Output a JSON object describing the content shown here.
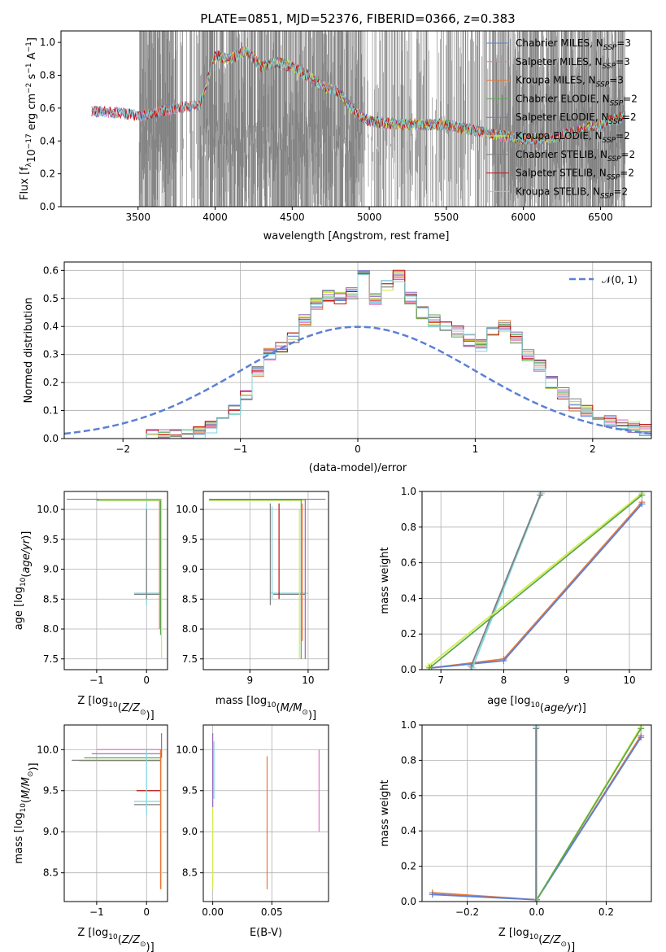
{
  "chart_data": [
    {
      "type": "line",
      "title": "PLATE=0851, MJD=52376, FIBERID=0366, z=0.383",
      "xlabel": "wavelength [Angstrom, rest frame]",
      "ylabel": "Flux [f_λ 10^-17 erg cm^-2 s^-1 A^-1]",
      "xlim": [
        3000,
        6830
      ],
      "ylim": [
        0,
        1.07
      ],
      "xticks": [
        "3500",
        "4000",
        "4500",
        "5000",
        "5500",
        "6000",
        "6500"
      ],
      "yticks": [
        "0.0",
        "0.2",
        "0.4",
        "0.6",
        "0.8",
        "1.0"
      ],
      "legend_position": "upper right",
      "data_range": [
        3200,
        6650
      ],
      "series": [
        {
          "name": "Chabrier MILES, N_SSP=3",
          "color": "#5b7fd6",
          "start": 3200
        },
        {
          "name": "Salpeter MILES, N_SSP=3",
          "color": "#e377c2",
          "start": 3200
        },
        {
          "name": "Kroupa MILES, N_SSP=3",
          "color": "#e8793a",
          "start": 3530
        },
        {
          "name": "Chabrier ELODIE, N_SSP=2",
          "color": "#5ba852",
          "start": 3900
        },
        {
          "name": "Salpeter ELODIE, N_SSP=2",
          "color": "#9467bd",
          "start": 3900
        },
        {
          "name": "Kroupa ELODIE, N_SSP=2",
          "color": "#d4ec4c",
          "start": 3900
        },
        {
          "name": "Chabrier STELIB, N_SSP=2",
          "color": "#7f7f7f",
          "start": 3200
        },
        {
          "name": "Salpeter STELIB, N_SSP=2",
          "color": "#c01010",
          "start": 3200
        },
        {
          "name": "Kroupa STELIB, N_SSP=2",
          "color": "#7fd6df",
          "start": 3200
        }
      ],
      "data_trend": {
        "x": [
          3200,
          3400,
          3520,
          3600,
          3750,
          3900,
          4000,
          4100,
          4200,
          4300,
          4400,
          4500,
          4600,
          4700,
          4800,
          4900,
          5000,
          5200,
          5500,
          5800,
          6000,
          6200,
          6400,
          6650
        ],
        "y": [
          0.58,
          0.57,
          0.55,
          0.57,
          0.6,
          0.62,
          0.92,
          0.9,
          0.95,
          0.85,
          0.88,
          0.85,
          0.8,
          0.73,
          0.7,
          0.58,
          0.52,
          0.5,
          0.5,
          0.44,
          0.41,
          0.42,
          0.48,
          0.55
        ]
      }
    },
    {
      "type": "histogram",
      "xlabel": "(data-model)/error",
      "ylabel": "Normed distribution",
      "xlim": [
        -2.5,
        2.5
      ],
      "ylim": [
        0,
        0.63
      ],
      "xticks": [
        "−2",
        "−1",
        "0",
        "1",
        "2"
      ],
      "yticks": [
        "0.0",
        "0.1",
        "0.2",
        "0.3",
        "0.4",
        "0.5",
        "0.6"
      ],
      "legend": [
        "𝒩(0, 1)"
      ],
      "reference_curve": {
        "name": "𝒩(0, 1)",
        "style": "dashed",
        "color": "#5b80d6",
        "mean": 0,
        "sigma": 1
      },
      "bin_width": 0.1,
      "bin_start": -1.8,
      "base_values": [
        0.01,
        0.01,
        0.01,
        0.02,
        0.02,
        0.04,
        0.06,
        0.1,
        0.16,
        0.24,
        0.3,
        0.33,
        0.36,
        0.42,
        0.48,
        0.51,
        0.5,
        0.52,
        0.58,
        0.5,
        0.55,
        0.58,
        0.5,
        0.45,
        0.42,
        0.4,
        0.38,
        0.35,
        0.33,
        0.38,
        0.4,
        0.36,
        0.3,
        0.26,
        0.2,
        0.16,
        0.12,
        0.1,
        0.07,
        0.06,
        0.05,
        0.04,
        0.03
      ],
      "series_colors": [
        "#5b7fd6",
        "#e377c2",
        "#e8793a",
        "#5ba852",
        "#9467bd",
        "#d4ec4c",
        "#7f7f7f",
        "#c01010",
        "#7fd6df"
      ]
    },
    {
      "type": "errorbar",
      "xlabel": "Z [log10(Z/Z⊙)]",
      "ylabel": "age  [log10(age/yr)]",
      "xlim": [
        -1.65,
        0.42
      ],
      "ylim": [
        7.32,
        10.3
      ],
      "xticks": [
        "−1",
        "0"
      ],
      "yticks": [
        "7.5",
        "8.0",
        "8.5",
        "9.0",
        "9.5",
        "10.0"
      ]
    },
    {
      "type": "errorbar",
      "xlabel": "mass [log10(M/M⊙)]",
      "ylabel": "",
      "xlim": [
        8.2,
        10.35
      ],
      "ylim": [
        7.32,
        10.3
      ],
      "xticks": [
        "9",
        "10"
      ],
      "yticks": [
        "7.5",
        "8.0",
        "8.5",
        "9.0",
        "9.5",
        "10.0"
      ]
    },
    {
      "type": "line",
      "xlabel": "age  [log10(age/yr)]",
      "ylabel": "mass weight",
      "xlim": [
        6.7,
        10.35
      ],
      "ylim": [
        0,
        1
      ],
      "xticks": [
        "7",
        "8",
        "9",
        "10"
      ],
      "yticks": [
        "0.0",
        "0.2",
        "0.4",
        "0.6",
        "0.8",
        "1.0"
      ],
      "series": [
        {
          "color": "#e8793a",
          "x": [
            6.85,
            8.0,
            10.2
          ],
          "y": [
            0.01,
            0.06,
            0.94
          ]
        },
        {
          "color": "#5b7fd6",
          "x": [
            6.85,
            8.0,
            10.2
          ],
          "y": [
            0.01,
            0.05,
            0.93
          ]
        },
        {
          "color": "#7fd6df",
          "x": [
            7.5,
            8.6
          ],
          "y": [
            0.01,
            0.99
          ]
        },
        {
          "color": "#7f7f7f",
          "x": [
            7.48,
            8.58
          ],
          "y": [
            0.02,
            0.98
          ]
        },
        {
          "color": "#d4ec4c",
          "x": [
            6.8,
            10.2
          ],
          "y": [
            0.02,
            0.99
          ]
        },
        {
          "color": "#5ba852",
          "x": [
            6.82,
            10.2
          ],
          "y": [
            0.01,
            0.98
          ]
        }
      ]
    },
    {
      "type": "errorbar",
      "xlabel": "Z [log10(Z/Z⊙)]",
      "ylabel": "mass [log10(M/M⊙)]",
      "xlim": [
        -1.65,
        0.42
      ],
      "ylim": [
        8.15,
        10.3
      ],
      "xticks": [
        "−1",
        "0"
      ],
      "yticks": [
        "8.5",
        "9.0",
        "9.5",
        "10.0"
      ]
    },
    {
      "type": "errorbar",
      "xlabel": "E(B-V)",
      "ylabel": "",
      "xlim": [
        -0.008,
        0.098
      ],
      "ylim": [
        8.15,
        10.3
      ],
      "xticks": [
        "0.00",
        "0.05"
      ],
      "yticks": [
        "8.5",
        "9.0",
        "9.5",
        "10.0"
      ]
    },
    {
      "type": "line",
      "xlabel": "Z [log10(Z/Z⊙)]",
      "ylabel": "mass weight",
      "xlim": [
        -0.33,
        0.33
      ],
      "ylim": [
        0,
        1
      ],
      "xticks": [
        "−0.2",
        "0.0",
        "0.2"
      ],
      "yticks": [
        "0.0",
        "0.2",
        "0.4",
        "0.6",
        "0.8",
        "1.0"
      ],
      "series": [
        {
          "color": "#e8793a",
          "x": [
            -0.3,
            0.0,
            0.3
          ],
          "y": [
            0.05,
            0.01,
            0.94
          ]
        },
        {
          "color": "#5b7fd6",
          "x": [
            -0.3,
            0.0,
            0.3
          ],
          "y": [
            0.04,
            0.01,
            0.93
          ]
        },
        {
          "color": "#d4ec4c",
          "x": [
            0.0,
            0.3
          ],
          "y": [
            0.01,
            0.99
          ]
        },
        {
          "color": "#5ba852",
          "x": [
            0.0,
            0.3
          ],
          "y": [
            0.01,
            0.98
          ]
        },
        {
          "color": "#7fd6df",
          "x": [
            0.0,
            0.0
          ],
          "y": [
            0.0,
            0.99
          ]
        },
        {
          "color": "#7f7f7f",
          "x": [
            -0.002,
            -0.002
          ],
          "y": [
            0.0,
            0.98
          ]
        }
      ]
    }
  ]
}
